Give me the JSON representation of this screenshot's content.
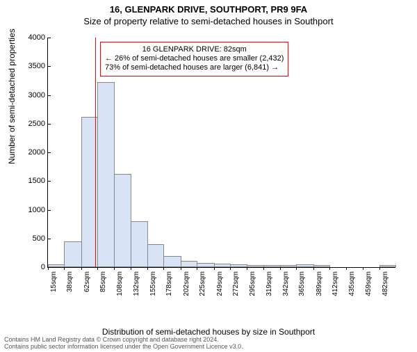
{
  "titles": {
    "main": "16, GLENPARK DRIVE, SOUTHPORT, PR9 9FA",
    "sub": "Size of property relative to semi-detached houses in Southport",
    "x_axis": "Distribution of semi-detached houses by size in Southport",
    "y_axis": "Number of semi-detached properties"
  },
  "attribution": {
    "line1": "Contains HM Land Registry data © Crown copyright and database right 2024.",
    "line2": "Contains public sector information licensed under the Open Government Licence v3.0."
  },
  "chart": {
    "type": "histogram",
    "ylim": [
      0,
      4000
    ],
    "ytick_step": 500,
    "yticks": [
      0,
      500,
      1000,
      1500,
      2000,
      2500,
      3000,
      3500,
      4000
    ],
    "x_domain": [
      15,
      505
    ],
    "x_ticks": [
      {
        "pos": 15,
        "label": "15sqm"
      },
      {
        "pos": 38,
        "label": "38sqm"
      },
      {
        "pos": 62,
        "label": "62sqm"
      },
      {
        "pos": 85,
        "label": "85sqm"
      },
      {
        "pos": 108,
        "label": "108sqm"
      },
      {
        "pos": 132,
        "label": "132sqm"
      },
      {
        "pos": 155,
        "label": "155sqm"
      },
      {
        "pos": 178,
        "label": "178sqm"
      },
      {
        "pos": 202,
        "label": "202sqm"
      },
      {
        "pos": 225,
        "label": "225sqm"
      },
      {
        "pos": 249,
        "label": "249sqm"
      },
      {
        "pos": 272,
        "label": "272sqm"
      },
      {
        "pos": 295,
        "label": "295sqm"
      },
      {
        "pos": 319,
        "label": "319sqm"
      },
      {
        "pos": 342,
        "label": "342sqm"
      },
      {
        "pos": 365,
        "label": "365sqm"
      },
      {
        "pos": 389,
        "label": "389sqm"
      },
      {
        "pos": 412,
        "label": "412sqm"
      },
      {
        "pos": 435,
        "label": "435sqm"
      },
      {
        "pos": 459,
        "label": "459sqm"
      },
      {
        "pos": 482,
        "label": "482sqm"
      }
    ],
    "bars": [
      {
        "x0": 15,
        "x1": 38,
        "value": 20
      },
      {
        "x0": 38,
        "x1": 62,
        "value": 430
      },
      {
        "x0": 62,
        "x1": 85,
        "value": 2600
      },
      {
        "x0": 85,
        "x1": 108,
        "value": 3200
      },
      {
        "x0": 108,
        "x1": 132,
        "value": 1600
      },
      {
        "x0": 132,
        "x1": 155,
        "value": 780
      },
      {
        "x0": 155,
        "x1": 178,
        "value": 370
      },
      {
        "x0": 178,
        "x1": 202,
        "value": 170
      },
      {
        "x0": 202,
        "x1": 225,
        "value": 80
      },
      {
        "x0": 225,
        "x1": 249,
        "value": 50
      },
      {
        "x0": 249,
        "x1": 272,
        "value": 40
      },
      {
        "x0": 272,
        "x1": 295,
        "value": 20
      },
      {
        "x0": 295,
        "x1": 319,
        "value": 15
      },
      {
        "x0": 319,
        "x1": 342,
        "value": 10
      },
      {
        "x0": 342,
        "x1": 365,
        "value": 5
      },
      {
        "x0": 365,
        "x1": 389,
        "value": 30
      },
      {
        "x0": 389,
        "x1": 412,
        "value": 5
      },
      {
        "x0": 412,
        "x1": 435,
        "value": 0
      },
      {
        "x0": 435,
        "x1": 459,
        "value": 0
      },
      {
        "x0": 459,
        "x1": 482,
        "value": 0
      },
      {
        "x0": 482,
        "x1": 505,
        "value": 5
      }
    ],
    "bar_fill": "#d8e4f5",
    "bar_stroke": "#888888",
    "marker": {
      "x": 82,
      "color": "#ff0000"
    },
    "annotation": {
      "border_color": "#ff0000",
      "background": "#ffffff",
      "lines": [
        "16 GLENPARK DRIVE: 82sqm",
        "← 26% of semi-detached houses are smaller (2,432)",
        "73% of semi-detached houses are larger (6,841) →"
      ]
    }
  }
}
